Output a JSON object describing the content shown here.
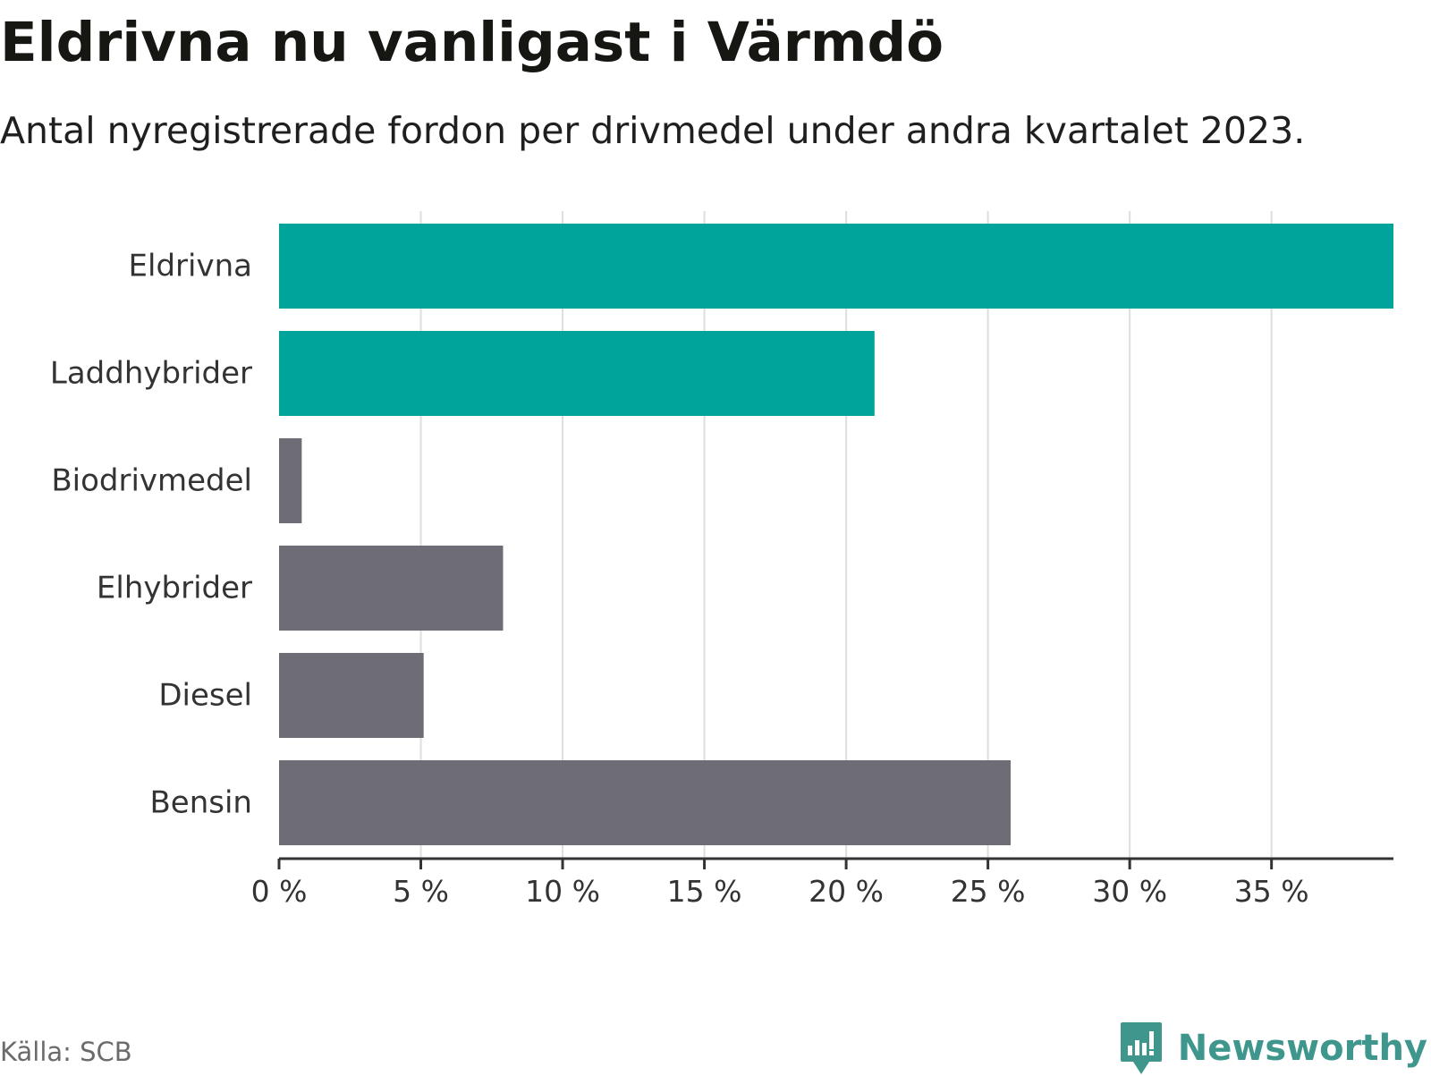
{
  "header": {
    "title": "Eldrivna nu vanligast i Värmdö",
    "subtitle": "Antal nyregistrerade fordon per drivmedel under andra kvartalet 2023."
  },
  "footer": {
    "source": "Källa: SCB",
    "brand": "Newsworthy"
  },
  "colors": {
    "highlight": "#00a49a",
    "default": "#6e6d75",
    "grid": "#dedede",
    "axis": "#333333",
    "label": "#333333",
    "brand": "#3e968c"
  },
  "chart_data": {
    "type": "bar",
    "orientation": "horizontal",
    "title": "Eldrivna nu vanligast i Värmdö",
    "subtitle": "Antal nyregistrerade fordon per drivmedel under andra kvartalet 2023.",
    "xlabel": "",
    "ylabel": "",
    "xlim": [
      0,
      39.3
    ],
    "ticks": [
      0,
      5,
      10,
      15,
      20,
      25,
      30,
      35
    ],
    "tick_labels": [
      "0 %",
      "5 %",
      "10 %",
      "15 %",
      "20 %",
      "25 %",
      "30 %",
      "35 %"
    ],
    "grid": true,
    "categories": [
      "Eldrivna",
      "Laddhybrider",
      "Biodrivmedel",
      "Elhybrider",
      "Diesel",
      "Bensin"
    ],
    "values": [
      39.3,
      21.0,
      0.8,
      7.9,
      5.1,
      25.8
    ],
    "highlighted": [
      true,
      true,
      false,
      false,
      false,
      false
    ]
  }
}
